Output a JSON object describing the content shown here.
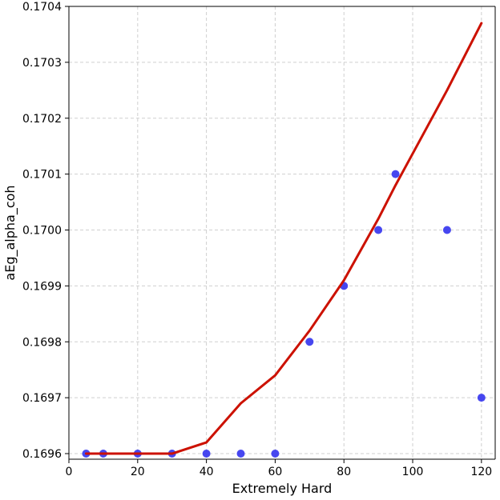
{
  "chart_data": {
    "type": "scatter",
    "xlabel": "Extremely Hard",
    "ylabel": "aEg_alpha_coh",
    "xlim": [
      0,
      124
    ],
    "ylim": [
      0.16959,
      0.1704
    ],
    "xticks": [
      0,
      20,
      40,
      60,
      80,
      100,
      120
    ],
    "yticks": [
      0.1696,
      0.1697,
      0.1698,
      0.1699,
      0.17,
      0.1701,
      0.1702,
      0.1703,
      0.1704
    ],
    "ytick_labels": [
      "0.1696",
      "0.1697",
      "0.1698",
      "0.1699",
      "0.1700",
      "0.1701",
      "0.1702",
      "0.1703",
      "0.1704"
    ],
    "grid": true,
    "series": [
      {
        "kind": "scatter",
        "color": "#3333ee",
        "x": [
          5,
          10,
          20,
          30,
          40,
          50,
          60,
          70,
          80,
          90,
          95,
          110,
          120
        ],
        "y": [
          0.1696,
          0.1696,
          0.1696,
          0.1696,
          0.1696,
          0.1696,
          0.1696,
          0.1698,
          0.1699,
          0.17,
          0.1701,
          0.17,
          0.1697
        ]
      },
      {
        "kind": "line",
        "color": "#cc1100",
        "x": [
          5,
          10,
          20,
          30,
          40,
          50,
          60,
          70,
          80,
          90,
          95,
          110,
          120
        ],
        "y": [
          0.1696,
          0.1696,
          0.1696,
          0.1696,
          0.16962,
          0.16969,
          0.16974,
          0.16982,
          0.16991,
          0.17002,
          0.17008,
          0.17025,
          0.17037
        ]
      }
    ]
  }
}
